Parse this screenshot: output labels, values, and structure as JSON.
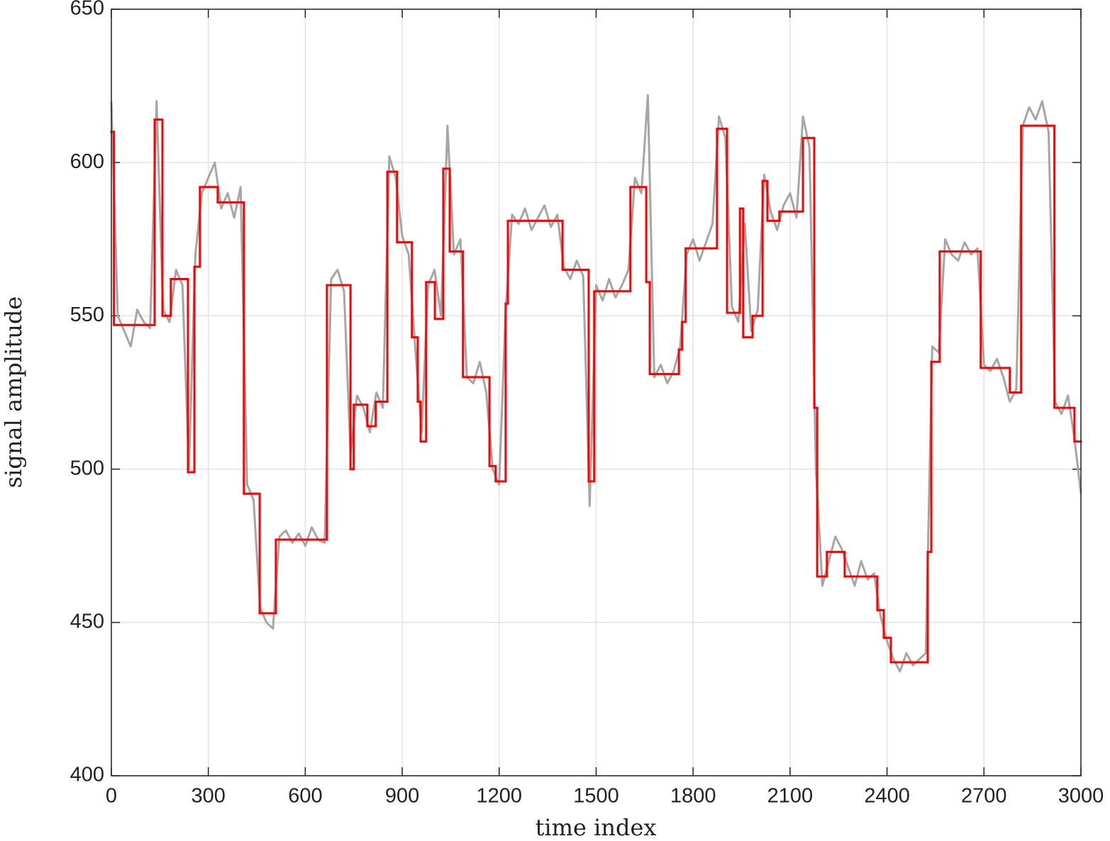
{
  "chart_data": {
    "type": "line",
    "x_label": "time index",
    "y_label": "signal amplitude",
    "xlim": [
      0,
      3000
    ],
    "xticks": [
      0,
      300,
      600,
      900,
      1200,
      1500,
      1800,
      2100,
      2400,
      2700,
      3000
    ],
    "ylim": [
      400,
      650
    ],
    "yticks": [
      400,
      450,
      500,
      550,
      600,
      650
    ],
    "grid": true,
    "series": [
      {
        "color": "#a6a6a6",
        "x": [
          0,
          20,
          40,
          60,
          80,
          100,
          120,
          140,
          160,
          180,
          200,
          220,
          240,
          260,
          280,
          300,
          320,
          340,
          360,
          380,
          400,
          420,
          440,
          460,
          480,
          500,
          520,
          540,
          560,
          580,
          600,
          620,
          640,
          660,
          680,
          700,
          720,
          740,
          760,
          780,
          800,
          820,
          840,
          860,
          880,
          900,
          920,
          940,
          960,
          980,
          1000,
          1020,
          1040,
          1060,
          1080,
          1100,
          1120,
          1140,
          1160,
          1180,
          1200,
          1220,
          1240,
          1260,
          1280,
          1300,
          1320,
          1340,
          1360,
          1380,
          1400,
          1420,
          1440,
          1460,
          1480,
          1500,
          1520,
          1540,
          1560,
          1580,
          1600,
          1620,
          1640,
          1660,
          1680,
          1700,
          1720,
          1740,
          1760,
          1780,
          1800,
          1820,
          1840,
          1860,
          1880,
          1900,
          1920,
          1940,
          1960,
          1980,
          2000,
          2020,
          2040,
          2060,
          2080,
          2100,
          2120,
          2140,
          2160,
          2180,
          2200,
          2220,
          2240,
          2260,
          2280,
          2300,
          2320,
          2340,
          2360,
          2380,
          2400,
          2420,
          2440,
          2460,
          2480,
          2500,
          2520,
          2540,
          2560,
          2580,
          2600,
          2620,
          2640,
          2660,
          2680,
          2700,
          2720,
          2740,
          2760,
          2780,
          2800,
          2820,
          2840,
          2860,
          2880,
          2900,
          2920,
          2940,
          2960,
          2980,
          3000
        ],
        "values": [
          620,
          550,
          545,
          540,
          552,
          548,
          546,
          620,
          552,
          548,
          565,
          560,
          500,
          570,
          590,
          595,
          600,
          585,
          590,
          582,
          592,
          495,
          490,
          455,
          450,
          448,
          478,
          480,
          476,
          479,
          475,
          481,
          477,
          476,
          562,
          565,
          558,
          505,
          524,
          520,
          512,
          525,
          520,
          602,
          595,
          576,
          570,
          540,
          512,
          560,
          565,
          550,
          612,
          570,
          575,
          530,
          528,
          535,
          525,
          500,
          495,
          552,
          583,
          580,
          585,
          578,
          582,
          586,
          579,
          583,
          566,
          562,
          568,
          563,
          488,
          560,
          555,
          562,
          556,
          560,
          565,
          595,
          590,
          622,
          530,
          534,
          528,
          532,
          540,
          570,
          575,
          568,
          574,
          580,
          615,
          608,
          553,
          548,
          580,
          545,
          552,
          596,
          584,
          578,
          586,
          590,
          582,
          615,
          605,
          500,
          462,
          470,
          478,
          474,
          468,
          462,
          470,
          464,
          466,
          452,
          444,
          438,
          434,
          440,
          436,
          438,
          440,
          540,
          538,
          575,
          570,
          568,
          574,
          570,
          572,
          534,
          532,
          536,
          530,
          522,
          526,
          612,
          618,
          614,
          620,
          610,
          522,
          518,
          524,
          510,
          492
        ]
      },
      {
        "color": "#ff0000",
        "step": true,
        "x": [
          0,
          8,
          134,
          158,
          184,
          237,
          257,
          274,
          329,
          410,
          459,
          509,
          667,
          740,
          750,
          792,
          818,
          854,
          884,
          930,
          948,
          957,
          974,
          1001,
          1027,
          1047,
          1088,
          1170,
          1189,
          1220,
          1227,
          1396,
          1477,
          1494,
          1606,
          1655,
          1666,
          1756,
          1766,
          1777,
          1874,
          1905,
          1945,
          1955,
          1984,
          2015,
          2030,
          2067,
          2140,
          2175,
          2184,
          2214,
          2269,
          2370,
          2390,
          2412,
          2526,
          2537,
          2563,
          2690,
          2780,
          2815,
          2918,
          2980,
          3000
        ],
        "values": [
          610,
          547,
          614,
          550,
          562,
          499,
          566,
          592,
          587,
          492,
          453,
          477,
          560,
          500,
          521,
          514,
          522,
          597,
          574,
          543,
          522,
          509,
          561,
          549,
          598,
          571,
          530,
          501,
          496,
          554,
          581,
          565,
          496,
          558,
          592,
          561,
          531,
          539,
          548,
          572,
          611,
          551,
          585,
          543,
          550,
          594,
          581,
          584,
          608,
          520,
          465,
          473,
          465,
          454,
          445,
          437,
          473,
          535,
          571,
          533,
          525,
          612,
          520,
          509,
          509
        ]
      }
    ]
  }
}
